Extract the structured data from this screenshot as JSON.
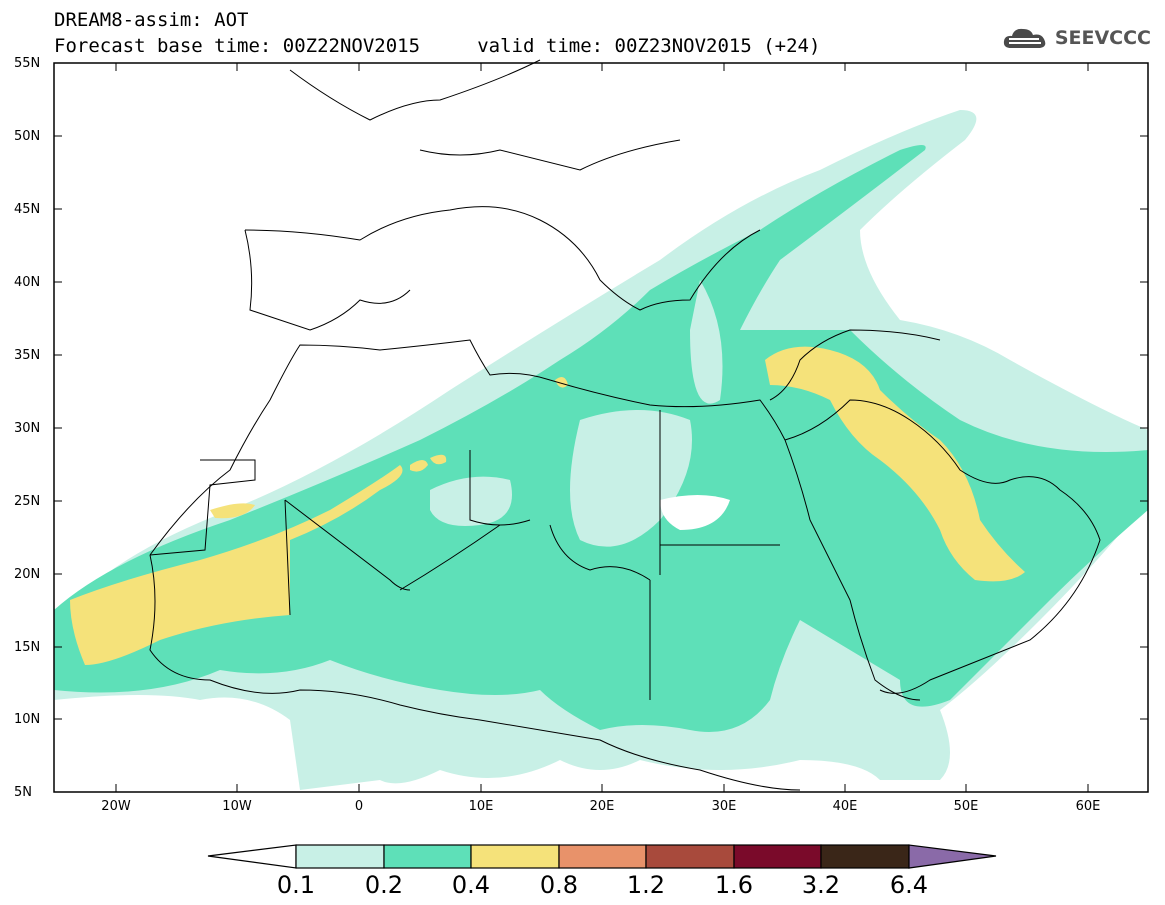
{
  "header": {
    "title_line_1": "DREAM8-assim: AOT",
    "title_line_2": "Forecast base time: 00Z22NOV2015     valid time: 00Z23NOV2015 (+24)",
    "logo_text": "SEEVCCC"
  },
  "map": {
    "variable": "AOT",
    "region": "North Africa, Europe and Middle East",
    "lat_range": [
      5,
      55
    ],
    "lon_range": [
      -25,
      65
    ],
    "lat_ticks": [
      "55N",
      "50N",
      "45N",
      "40N",
      "35N",
      "30N",
      "25N",
      "20N",
      "15N",
      "10N",
      "5N"
    ],
    "lon_ticks": [
      "20W",
      "10W",
      "0",
      "10E",
      "20E",
      "30E",
      "40E",
      "50E",
      "60E"
    ]
  },
  "colorbar": {
    "labels": [
      "0.1",
      "0.2",
      "0.4",
      "0.8",
      "1.2",
      "1.6",
      "3.2",
      "6.4"
    ],
    "colors": [
      "#c8f0e6",
      "#5ee0b8",
      "#f5e27a",
      "#e8926a",
      "#a84a3c",
      "#7a0a2a",
      "#3a2618",
      "#8a6aa8"
    ]
  }
}
